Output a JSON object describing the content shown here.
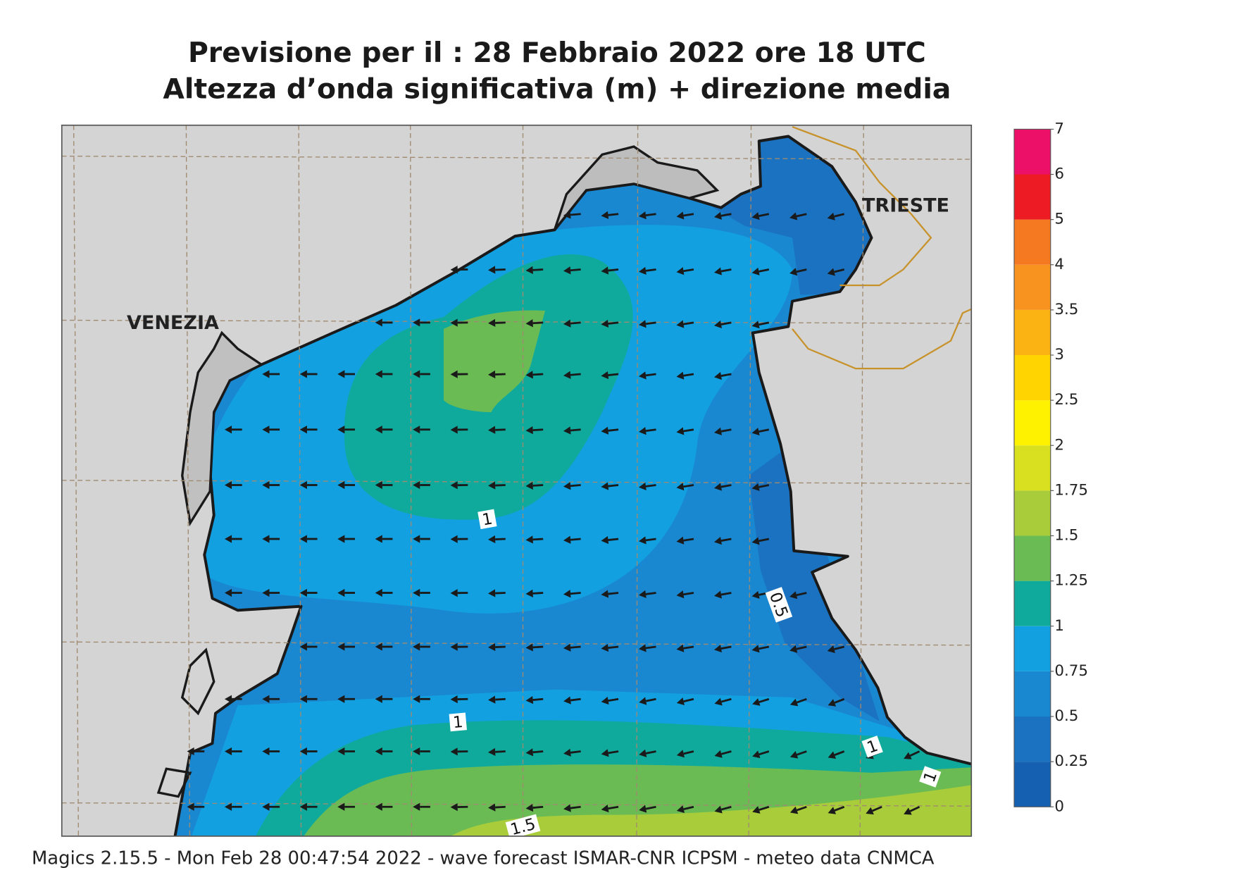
{
  "header": {
    "title": "Previsione per il  :  28  Febbraio 2022   ore 18 UTC",
    "subtitle": "Altezza d’onda significativa (m) + direzione media"
  },
  "cities": [
    "VENEZIA",
    "TRIESTE"
  ],
  "contour_labels": [
    1,
    1,
    0.5,
    1,
    1,
    1.5
  ],
  "colorbar": {
    "ticks": [
      0,
      0.25,
      0.5,
      0.75,
      1,
      1.25,
      1.5,
      1.75,
      2,
      2.5,
      3,
      3.5,
      4,
      5,
      6,
      7
    ],
    "colors": [
      "#1560b0",
      "#1a72c0",
      "#1a88d0",
      "#12a0e0",
      "#10aa9c",
      "#6bbb55",
      "#a8cc3a",
      "#d8e020",
      "#fff200",
      "#ffd400",
      "#fbb314",
      "#f7931e",
      "#f47920",
      "#ed1c24",
      "#ec1068"
    ]
  },
  "footer": "Magics 2.15.5 - Mon Feb 28 00:47:54 2022 - wave forecast  ISMAR-CNR  ICPSM - meteo data   CNMCA"
}
